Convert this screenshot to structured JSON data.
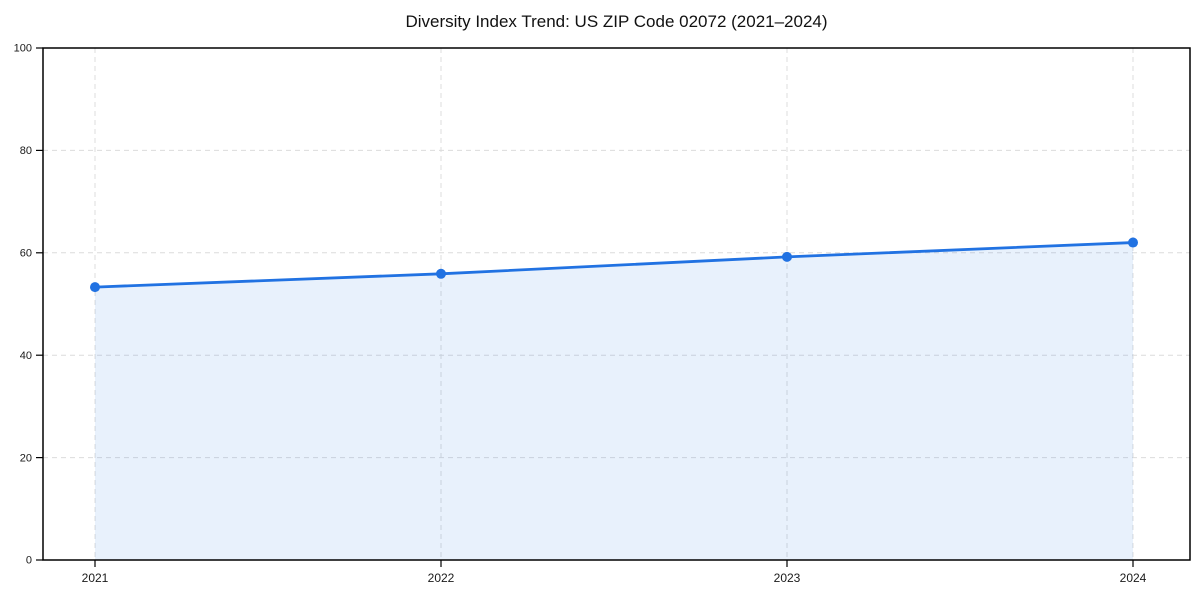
{
  "chart_data": {
    "type": "area",
    "title": "Diversity Index Trend: US ZIP Code 02072 (2021–2024)",
    "x": [
      "2021",
      "2022",
      "2023",
      "2024"
    ],
    "series": [
      {
        "name": "Diversity Index",
        "values": [
          53.3,
          55.9,
          59.2,
          62.0
        ]
      }
    ],
    "xlabel": "",
    "ylabel": "",
    "ylim": [
      0,
      100
    ],
    "yticks": [
      0,
      20,
      40,
      60,
      80,
      100
    ],
    "grid": "dashed-both-axes",
    "legend": "none",
    "marker": "circle",
    "colors": {
      "line": "#2172e2",
      "marker": "#2172e2",
      "fill": "rgba(33,114,226,0.10)",
      "gridline": "#dcdcdc",
      "spine": "#000000",
      "tick_label": "#1a1a1a",
      "title": "#111111",
      "background": "#ffffff"
    }
  }
}
